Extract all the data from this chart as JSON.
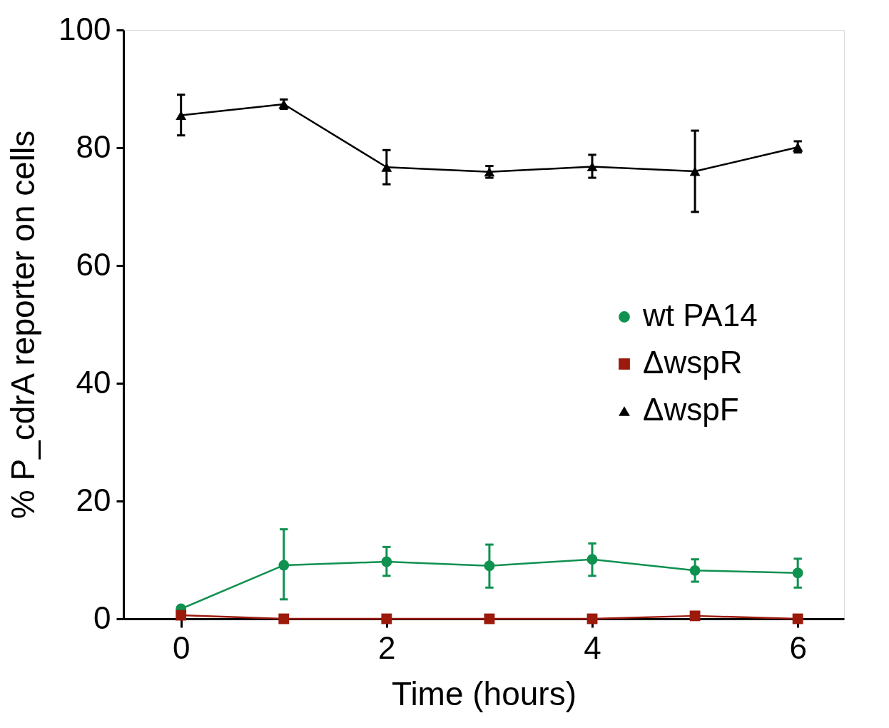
{
  "chart_data": {
    "type": "line",
    "xlabel": "Time (hours)",
    "ylabel": "% P_cdrA reporter on cells",
    "x": [
      0,
      1,
      2,
      3,
      4,
      5,
      6
    ],
    "xlim": [
      -0.56,
      6.45
    ],
    "xticks": [
      0,
      2,
      4,
      6
    ],
    "ylim": [
      0,
      100
    ],
    "yticks": [
      0,
      20,
      40,
      60,
      80,
      100
    ],
    "grid": false,
    "legend": "right",
    "line_style": "solid",
    "series": [
      {
        "name": "wt PA14",
        "color": "#0f9150",
        "marker": "circle",
        "values": [
          1.7,
          9.1,
          9.7,
          9.0,
          10.1,
          8.2,
          7.8
        ],
        "errors": [
          null,
          [
            3.3,
            15.2
          ],
          [
            7.3,
            12.2
          ],
          [
            5.3,
            12.6
          ],
          [
            7.3,
            12.8
          ],
          [
            6.3,
            10.1
          ],
          [
            5.3,
            10.2
          ]
        ]
      },
      {
        "name": "ΔwspR",
        "color": "#9b1a0c",
        "marker": "square",
        "values": [
          0.6,
          0,
          0,
          0,
          0,
          0.5,
          0
        ]
      },
      {
        "name": "ΔwspF",
        "color": "#000000",
        "marker": "triangle",
        "values": [
          85.5,
          87.4,
          76.7,
          75.9,
          76.8,
          76.0,
          80.1
        ],
        "errors": [
          [
            82.1,
            89.0
          ],
          [
            86.6,
            88.2
          ],
          [
            73.8,
            79.6
          ],
          [
            74.9,
            76.9
          ],
          [
            74.9,
            78.8
          ],
          [
            69.1,
            82.9
          ],
          [
            79.2,
            81.1
          ]
        ]
      }
    ]
  }
}
